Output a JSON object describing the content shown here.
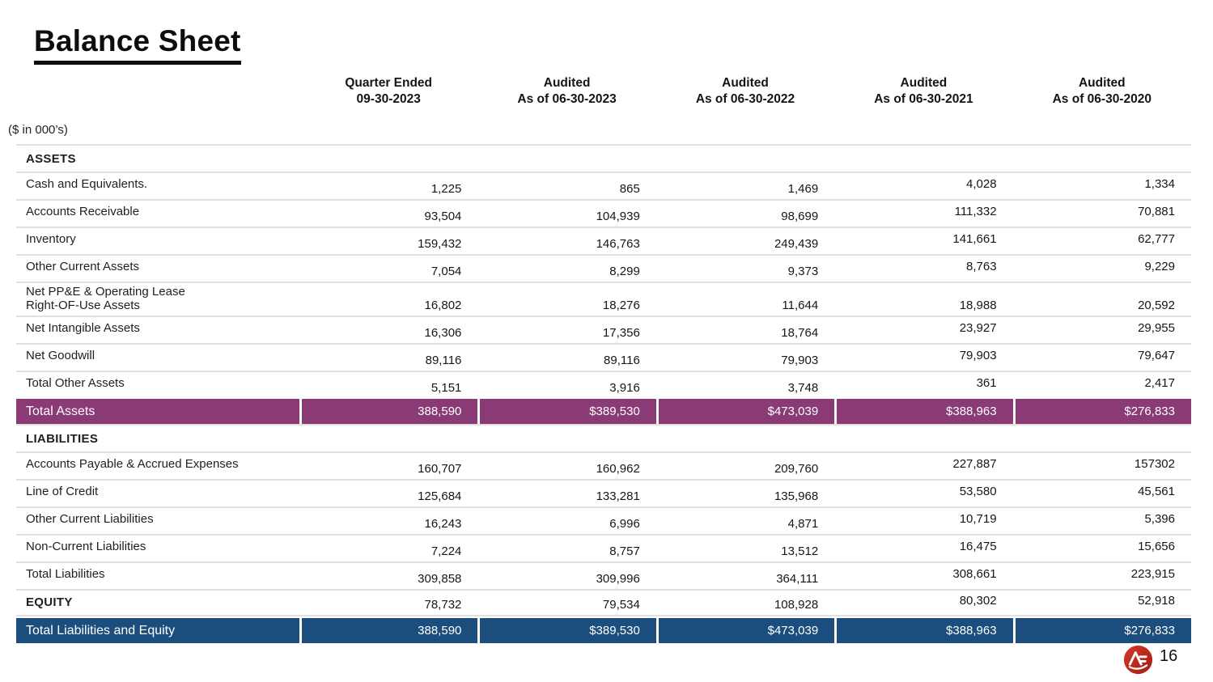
{
  "page": {
    "title": "Balance Sheet",
    "units_note": "($ in 000’s)",
    "page_number": "16"
  },
  "colors": {
    "total_row_purple": "#8a3a75",
    "total_row_blue": "#1b4e7d",
    "logo_red": "#d53726",
    "logo_red_dark": "#a31d14"
  },
  "table": {
    "columns": [
      {
        "line1": "Quarter Ended",
        "line2": "09-30-2023"
      },
      {
        "line1": "Audited",
        "line2": "As of 06-30-2023"
      },
      {
        "line1": "Audited",
        "line2": "As of 06-30-2022"
      },
      {
        "line1": "Audited",
        "line2": "As of 06-30-2021"
      },
      {
        "line1": "Audited",
        "line2": "As of 06-30-2020"
      }
    ],
    "rows": [
      {
        "type": "section",
        "label": "ASSETS",
        "values": [
          "",
          "",
          "",
          "",
          ""
        ]
      },
      {
        "type": "data",
        "label": "Cash and Equivalents.",
        "values": [
          "1,225",
          "865",
          "1,469",
          "4,028",
          "1,334"
        ]
      },
      {
        "type": "data",
        "label": "Accounts Receivable",
        "values": [
          "93,504",
          "104,939",
          "98,699",
          "111,332",
          "70,881"
        ]
      },
      {
        "type": "data",
        "label": "Inventory",
        "values": [
          "159,432",
          "146,763",
          "249,439",
          "141,661",
          "62,777"
        ]
      },
      {
        "type": "data",
        "label": "Other Current Assets",
        "values": [
          "7,054",
          "8,299",
          "9,373",
          "8,763",
          "9,229"
        ]
      },
      {
        "type": "data-tall",
        "label": "Net PP&E & Operating Lease Right-OF-Use Assets",
        "values": [
          "16,802",
          "18,276",
          "11,644",
          "18,988",
          "20,592"
        ]
      },
      {
        "type": "data",
        "label": "Net Intangible Assets",
        "values": [
          "16,306",
          "17,356",
          "18,764",
          "23,927",
          "29,955"
        ]
      },
      {
        "type": "data",
        "label": "Net Goodwill",
        "values": [
          "89,116",
          "89,116",
          "79,903",
          "79,903",
          "79,647"
        ]
      },
      {
        "type": "data",
        "label": "Total Other Assets",
        "values": [
          "5,151",
          "3,916",
          "3,748",
          "361",
          "2,417"
        ]
      },
      {
        "type": "total-assets",
        "label": "Total Assets",
        "values": [
          "388,590",
          "$389,530",
          "$473,039",
          "$388,963",
          "$276,833"
        ]
      },
      {
        "type": "section",
        "label": "LIABILITIES",
        "values": [
          "",
          "",
          "",
          "",
          ""
        ]
      },
      {
        "type": "data",
        "label": "Accounts Payable & Accrued Expenses",
        "values": [
          "160,707",
          "160,962",
          "209,760",
          "227,887",
          "157302"
        ]
      },
      {
        "type": "data",
        "label": "Line of Credit",
        "values": [
          "125,684",
          "133,281",
          "135,968",
          "53,580",
          "45,561"
        ]
      },
      {
        "type": "data",
        "label": "Other Current Liabilities",
        "values": [
          "16,243",
          "6,996",
          "4,871",
          "10,719",
          "5,396"
        ]
      },
      {
        "type": "data",
        "label": "Non-Current Liabilities",
        "values": [
          "7,224",
          "8,757",
          "13,512",
          "16,475",
          "15,656"
        ]
      },
      {
        "type": "data",
        "label": "Total Liabilities",
        "values": [
          "309,858",
          "309,996",
          "364,111",
          "308,661",
          "223,915"
        ]
      },
      {
        "type": "equity",
        "label": "EQUITY",
        "values": [
          "78,732",
          "79,534",
          "108,928",
          "80,302",
          "52,918"
        ]
      },
      {
        "type": "total-liab-equity",
        "label": "Total Liabilities and Equity",
        "values": [
          "388,590",
          "$389,530",
          "$473,039",
          "$388,963",
          "$276,833"
        ]
      }
    ]
  }
}
